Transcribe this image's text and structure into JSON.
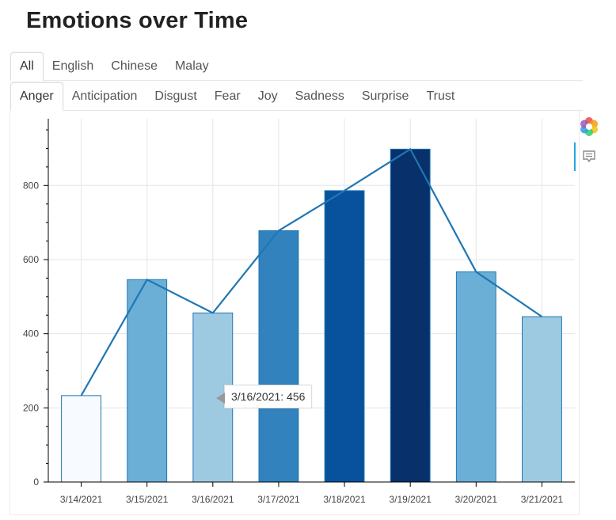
{
  "page": {
    "title": "Emotions over Time"
  },
  "language_tabs": [
    {
      "label": "All",
      "active": true
    },
    {
      "label": "English",
      "active": false
    },
    {
      "label": "Chinese",
      "active": false
    },
    {
      "label": "Malay",
      "active": false
    }
  ],
  "emotion_tabs": [
    {
      "label": "Anger",
      "active": true
    },
    {
      "label": "Anticipation",
      "active": false
    },
    {
      "label": "Disgust",
      "active": false
    },
    {
      "label": "Fear",
      "active": false
    },
    {
      "label": "Joy",
      "active": false
    },
    {
      "label": "Sadness",
      "active": false
    },
    {
      "label": "Surprise",
      "active": false
    },
    {
      "label": "Trust",
      "active": false
    }
  ],
  "toolbar": {
    "logo_icon": "bokeh-logo-icon",
    "hover_icon": "hover-tool-icon",
    "accent": "#26aae1"
  },
  "tooltip": {
    "text": "3/16/2021: 456"
  },
  "chart_data": {
    "type": "bar",
    "categories": [
      "3/14/2021",
      "3/15/2021",
      "3/16/2021",
      "3/17/2021",
      "3/18/2021",
      "3/19/2021",
      "3/20/2021",
      "3/21/2021"
    ],
    "values": [
      233,
      546,
      456,
      678,
      786,
      898,
      567,
      446
    ],
    "bar_colors": [
      "#f7fbff",
      "#6baed6",
      "#9ecae1",
      "#3182bd",
      "#08519c",
      "#08306b",
      "#6baed6",
      "#9ecae1"
    ],
    "bar_outline": "#1f77b4",
    "line": {
      "values": [
        233,
        546,
        456,
        678,
        786,
        898,
        567,
        446
      ],
      "color": "#1f77b4"
    },
    "ylim": [
      0,
      980
    ],
    "yticks": [
      0,
      200,
      400,
      600,
      800
    ],
    "grid": true,
    "xlabel": "",
    "ylabel": ""
  }
}
